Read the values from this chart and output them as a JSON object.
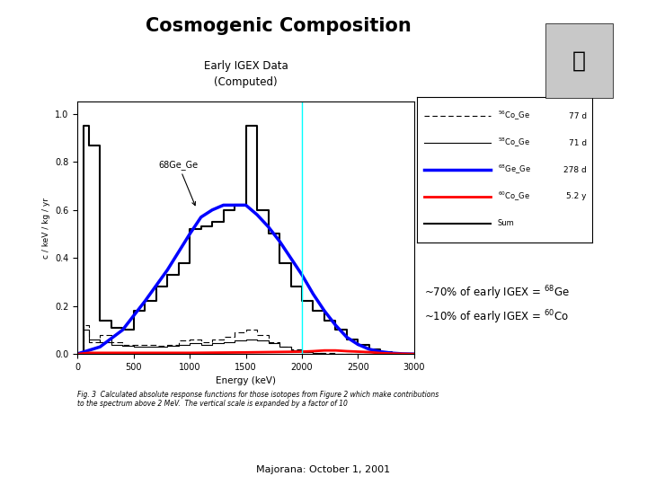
{
  "title": "Cosmogenic Composition",
  "subtitle": "Early IGEX Data\n(Computed)",
  "xlabel": "Energy (keV)",
  "ylabel": "c / keV / kg / yr",
  "xlim": [
    0,
    3000
  ],
  "ylim": [
    0,
    1.05
  ],
  "yticks": [
    0,
    0.2,
    0.4,
    0.6,
    0.8,
    1
  ],
  "xticks": [
    0,
    500,
    1000,
    1500,
    2000,
    2500,
    3000
  ],
  "footer_line1": "Fig. 3  Calculated absolute response functions for those isotopes from Figure 2 which make contributions",
  "footer_line2": "to the spectrum above 2 MeV.  The vertical scale is expanded by a factor of 10",
  "footer_date": "Majorana: October 1, 2001",
  "annotation_text": "~70% of early IGEX = $^{68}$Ge\n~10% of early IGEX = $^{60}$Co",
  "bg_color": "#ffffff",
  "vline_x": 2000,
  "vline_color": "cyan",
  "co56_bins": [
    0,
    50,
    100,
    200,
    300,
    400,
    500,
    600,
    700,
    800,
    900,
    1000,
    1100,
    1200,
    1300,
    1400,
    1500,
    1600,
    1700,
    1800,
    1900,
    2000,
    2100,
    2200,
    2300,
    2400,
    2500,
    2600,
    2700,
    3000
  ],
  "co56_vals": [
    0.005,
    0.12,
    0.05,
    0.08,
    0.05,
    0.04,
    0.04,
    0.04,
    0.035,
    0.04,
    0.055,
    0.06,
    0.05,
    0.06,
    0.07,
    0.09,
    0.1,
    0.08,
    0.05,
    0.03,
    0.02,
    0.01,
    0.005,
    0.003,
    0.002,
    0.001,
    0.001,
    0.001,
    0.0
  ],
  "co58_bins": [
    0,
    50,
    100,
    200,
    300,
    400,
    500,
    600,
    700,
    800,
    900,
    1000,
    1100,
    1200,
    1300,
    1400,
    1500,
    1600,
    1700,
    1800,
    1900,
    2000,
    2100,
    2200,
    2300,
    2400,
    2500,
    3000
  ],
  "co58_vals": [
    0.005,
    0.1,
    0.06,
    0.05,
    0.04,
    0.035,
    0.03,
    0.03,
    0.03,
    0.035,
    0.04,
    0.045,
    0.04,
    0.045,
    0.05,
    0.055,
    0.06,
    0.055,
    0.045,
    0.03,
    0.015,
    0.008,
    0.004,
    0.002,
    0.001,
    0.001,
    0.0
  ],
  "sum_bins": [
    0,
    50,
    100,
    200,
    300,
    400,
    500,
    600,
    700,
    800,
    900,
    1000,
    1100,
    1200,
    1300,
    1400,
    1500,
    1550,
    1600,
    1700,
    1800,
    1900,
    2000,
    2100,
    2200,
    2300,
    2400,
    2500,
    2600,
    2700,
    2800,
    3000
  ],
  "sum_vals": [
    0.005,
    0.95,
    0.87,
    0.14,
    0.11,
    0.1,
    0.18,
    0.22,
    0.28,
    0.33,
    0.38,
    0.52,
    0.53,
    0.55,
    0.6,
    0.62,
    0.95,
    0.95,
    0.6,
    0.5,
    0.38,
    0.28,
    0.22,
    0.18,
    0.14,
    0.1,
    0.06,
    0.04,
    0.02,
    0.01,
    0.0
  ],
  "ge68_x": [
    0,
    200,
    400,
    600,
    800,
    1000,
    1100,
    1200,
    1300,
    1400,
    1500,
    1600,
    1700,
    1800,
    1900,
    2000,
    2100,
    2200,
    2300,
    2400,
    2500,
    2600,
    2700,
    2800,
    2900,
    3000
  ],
  "ge68_y": [
    0.001,
    0.03,
    0.1,
    0.22,
    0.35,
    0.5,
    0.57,
    0.6,
    0.62,
    0.62,
    0.62,
    0.58,
    0.53,
    0.47,
    0.4,
    0.33,
    0.25,
    0.18,
    0.12,
    0.07,
    0.04,
    0.02,
    0.01,
    0.004,
    0.001,
    0.0
  ],
  "co60_x": [
    0,
    100,
    500,
    1000,
    1500,
    2000,
    2100,
    2200,
    2300,
    2400,
    2500,
    2600,
    2700,
    2800,
    3000
  ],
  "co60_y": [
    0.0,
    0.005,
    0.005,
    0.005,
    0.007,
    0.01,
    0.012,
    0.015,
    0.015,
    0.012,
    0.01,
    0.008,
    0.004,
    0.002,
    0.0
  ],
  "legend_entries": [
    {
      "label": "$^{56}$Co_Ge",
      "halflife": "77 d",
      "color": "black",
      "lw": 0.8,
      "ls": "dashed",
      "blue": false
    },
    {
      "label": "$^{58}$Co_Ge",
      "halflife": "71 d",
      "color": "black",
      "lw": 0.8,
      "ls": "solid",
      "blue": false
    },
    {
      "label": "$^{68}$Ge_Ge",
      "halflife": "278 d",
      "color": "blue",
      "lw": 2.5,
      "ls": "solid",
      "blue": true
    },
    {
      "label": "$^{60}$Co_Ge",
      "halflife": "5.2 y",
      "color": "red",
      "lw": 2.0,
      "ls": "solid",
      "blue": false
    },
    {
      "label": "Sum",
      "halflife": "",
      "color": "black",
      "lw": 1.5,
      "ls": "solid",
      "blue": false
    }
  ]
}
